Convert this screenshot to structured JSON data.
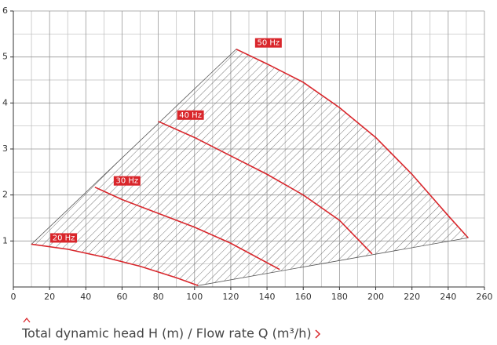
{
  "chart_data": {
    "type": "line",
    "footer": "Total dynamic head H (m) / Flow rate Q (m³/h)",
    "xlim": [
      0,
      260
    ],
    "xticks": [
      0,
      20,
      40,
      60,
      80,
      100,
      120,
      140,
      160,
      180,
      200,
      220,
      240,
      260
    ],
    "minor_xticks": [
      10,
      30,
      50,
      70,
      90,
      110,
      130,
      150,
      170,
      190,
      210,
      230,
      250
    ],
    "ylim": [
      0,
      6
    ],
    "yticks": [
      1,
      2,
      3,
      4,
      5,
      6
    ],
    "minor_yticks": [
      0.5,
      1.5,
      2.5,
      3.5,
      4.5,
      5.5
    ],
    "grid": true,
    "series": [
      {
        "name": "50 Hz",
        "color": "#d9262b",
        "x": [
          123,
          140,
          160,
          180,
          200,
          220,
          240,
          251
        ],
        "values": [
          5.17,
          4.85,
          4.45,
          3.9,
          3.25,
          2.45,
          1.55,
          1.07
        ]
      },
      {
        "name": "40 Hz",
        "color": "#d9262b",
        "x": [
          80,
          100,
          120,
          140,
          160,
          180,
          198
        ],
        "values": [
          3.6,
          3.25,
          2.85,
          2.45,
          2.0,
          1.45,
          0.72
        ]
      },
      {
        "name": "30 Hz",
        "color": "#d9262b",
        "x": [
          45,
          60,
          80,
          100,
          120,
          147
        ],
        "values": [
          2.17,
          1.9,
          1.6,
          1.3,
          0.95,
          0.38
        ]
      },
      {
        "name": "20 Hz",
        "color": "#d9262b",
        "x": [
          10,
          30,
          50,
          70,
          90,
          102
        ],
        "values": [
          0.93,
          0.82,
          0.65,
          0.45,
          0.2,
          0.03
        ]
      }
    ]
  }
}
